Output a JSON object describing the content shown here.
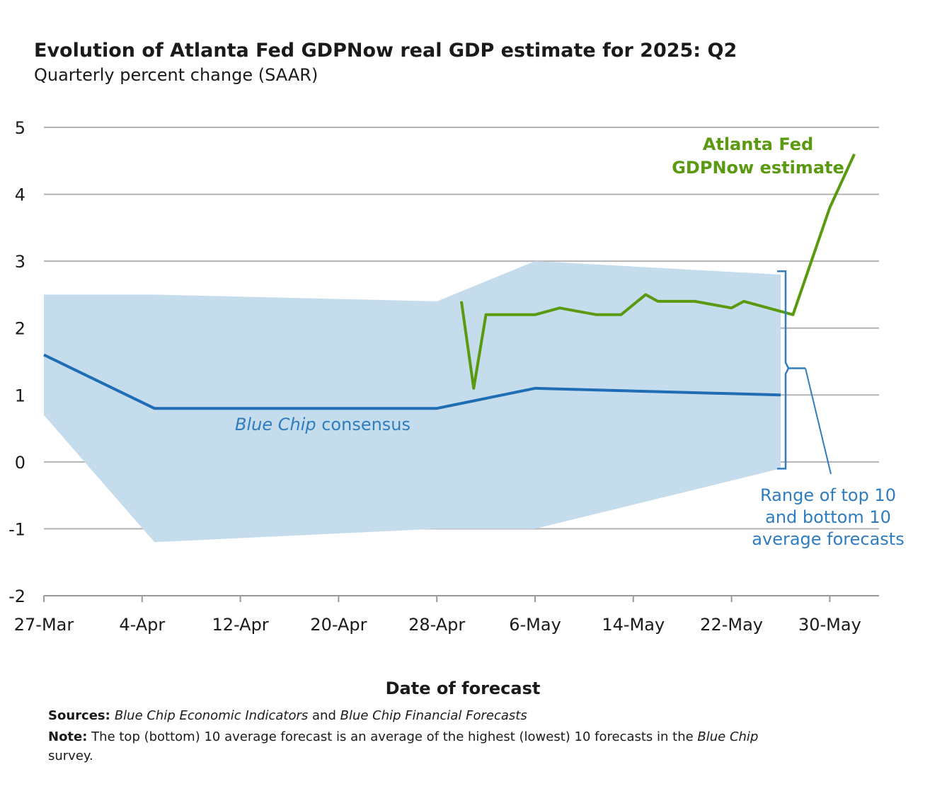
{
  "chart_data": {
    "type": "line",
    "title": "Evolution of Atlanta Fed GDPNow real GDP estimate for 2025: Q2",
    "subtitle": "Quarterly percent change (SAAR)",
    "xlabel": "Date of forecast",
    "ylabel": "",
    "ylim": [
      -2,
      5
    ],
    "yticks": [
      "5",
      "4",
      "3",
      "2",
      "1",
      "0",
      "-1",
      "-2"
    ],
    "xlim_days": [
      0,
      68
    ],
    "xticks": [
      {
        "label": "27-Mar",
        "day": 0
      },
      {
        "label": "4-Apr",
        "day": 8
      },
      {
        "label": "12-Apr",
        "day": 16
      },
      {
        "label": "20-Apr",
        "day": 24
      },
      {
        "label": "28-Apr",
        "day": 32
      },
      {
        "label": "6-May",
        "day": 40
      },
      {
        "label": "14-May",
        "day": 48
      },
      {
        "label": "22-May",
        "day": 56
      },
      {
        "label": "30-May",
        "day": 64
      }
    ],
    "grid": true,
    "band": {
      "name": "Range of top 10 and bottom 10 average forecasts",
      "upper": [
        [
          0,
          2.5
        ],
        [
          9,
          2.5
        ],
        [
          32,
          2.4
        ],
        [
          40,
          3.0
        ],
        [
          60,
          2.8
        ]
      ],
      "lower": [
        [
          0,
          0.7
        ],
        [
          9,
          -1.2
        ],
        [
          32,
          -1.0
        ],
        [
          40,
          -1.0
        ],
        [
          60,
          -0.1
        ]
      ]
    },
    "series": [
      {
        "name": "Blue Chip consensus",
        "color": "#1f6db5",
        "points": [
          [
            0,
            1.6
          ],
          [
            9,
            0.8
          ],
          [
            32,
            0.8
          ],
          [
            40,
            1.1
          ],
          [
            60,
            1.0
          ]
        ]
      },
      {
        "name": "Atlanta Fed GDPNow estimate",
        "color": "#5a9a10",
        "points": [
          [
            34,
            2.4
          ],
          [
            35,
            1.1
          ],
          [
            36,
            2.2
          ],
          [
            40,
            2.2
          ],
          [
            42,
            2.3
          ],
          [
            45,
            2.2
          ],
          [
            47,
            2.2
          ],
          [
            49,
            2.5
          ],
          [
            50,
            2.4
          ],
          [
            53,
            2.4
          ],
          [
            56,
            2.3
          ],
          [
            57,
            2.4
          ],
          [
            61,
            2.2
          ],
          [
            64,
            3.8
          ],
          [
            66,
            4.6
          ]
        ]
      }
    ],
    "annotations": {
      "gdpnow_line1": "Atlanta Fed",
      "gdpnow_line2": "GDPNow estimate",
      "bluechip_italic": "Blue Chip",
      "bluechip_rest": " consensus",
      "range_line1": "Range of top 10",
      "range_line2": "and bottom 10",
      "range_line3": "average forecasts"
    },
    "colors": {
      "band": "#c5dcec",
      "band_bracket": "#2f7dbf",
      "grid": "#b3b3b3",
      "axis": "#999999"
    }
  },
  "footer": {
    "sources_label": "Sources:",
    "sources_text_1": "Blue Chip Economic Indicators",
    "sources_text_2": " and ",
    "sources_text_3": "Blue Chip Financial Forecasts",
    "note_label": "Note:",
    "note_text_1": " The top (bottom) 10 average forecast is an average of the highest (lowest) 10 forecasts in the ",
    "note_text_2": "Blue Chip",
    "note_text_3": "survey."
  }
}
